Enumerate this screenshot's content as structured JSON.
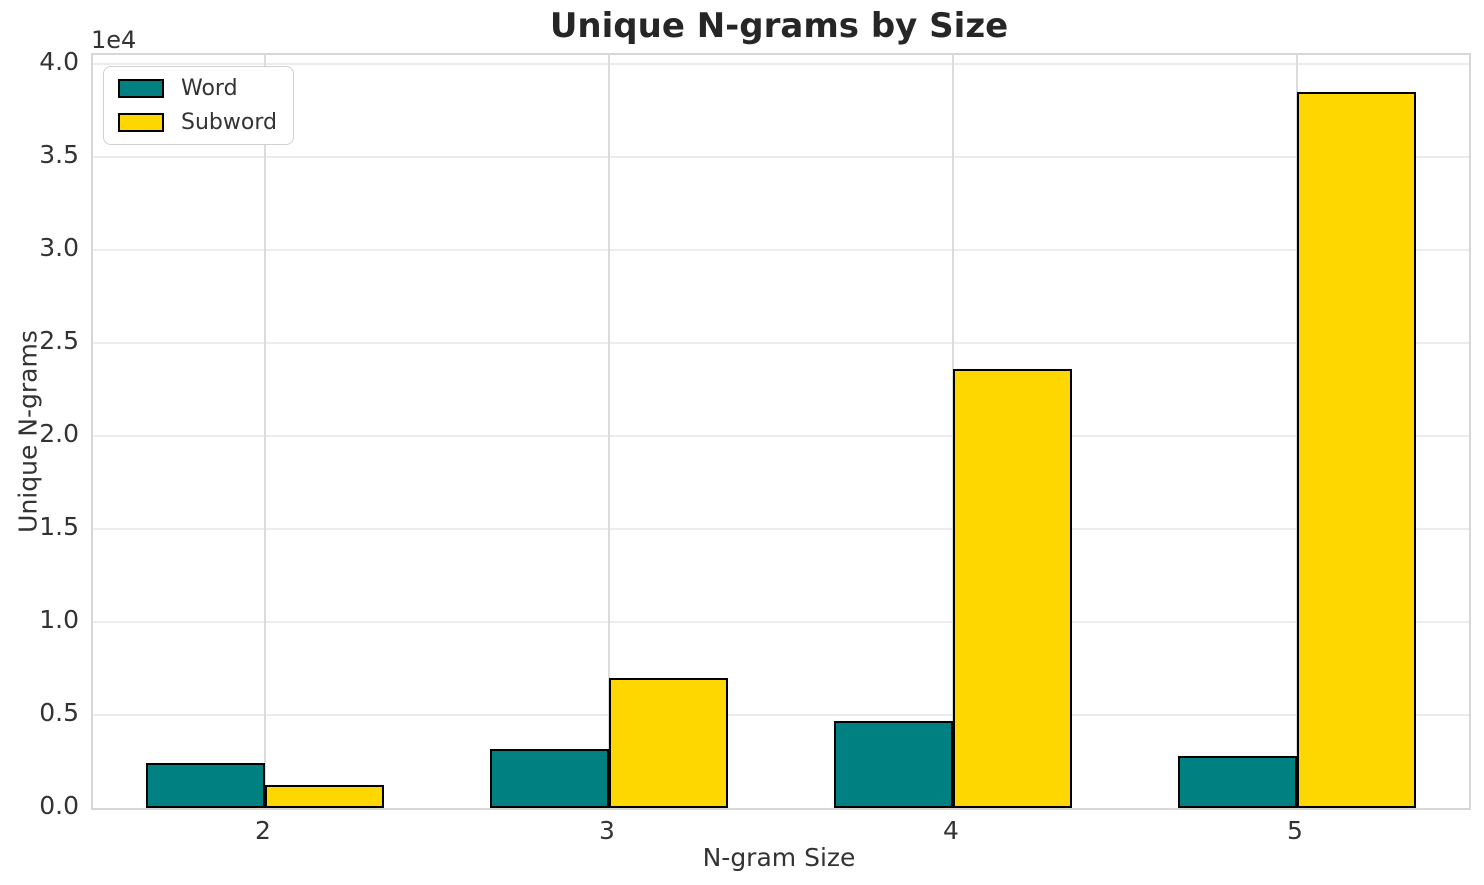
{
  "chart_data": {
    "type": "bar",
    "title": "Unique N-grams by Size",
    "xlabel": "N-gram Size",
    "ylabel": "Unique N-grams",
    "y_offset_label": "1e4",
    "categories": [
      "2",
      "3",
      "4",
      "5"
    ],
    "series": [
      {
        "name": "Word",
        "color": "#008080",
        "values": [
          2400,
          3200,
          4700,
          2800
        ]
      },
      {
        "name": "Subword",
        "color": "#FFD700",
        "values": [
          1250,
          7000,
          23600,
          38500
        ]
      }
    ],
    "ylim": [
      0,
      40500
    ],
    "yticks": [
      0,
      5000,
      10000,
      15000,
      20000,
      25000,
      30000,
      35000,
      40000
    ],
    "ytick_labels": [
      "0.0",
      "0.5",
      "1.0",
      "1.5",
      "2.0",
      "2.5",
      "3.0",
      "3.5",
      "4.0"
    ],
    "grid": true,
    "legend_position": "upper left",
    "bar_edge_color": "#000000"
  }
}
